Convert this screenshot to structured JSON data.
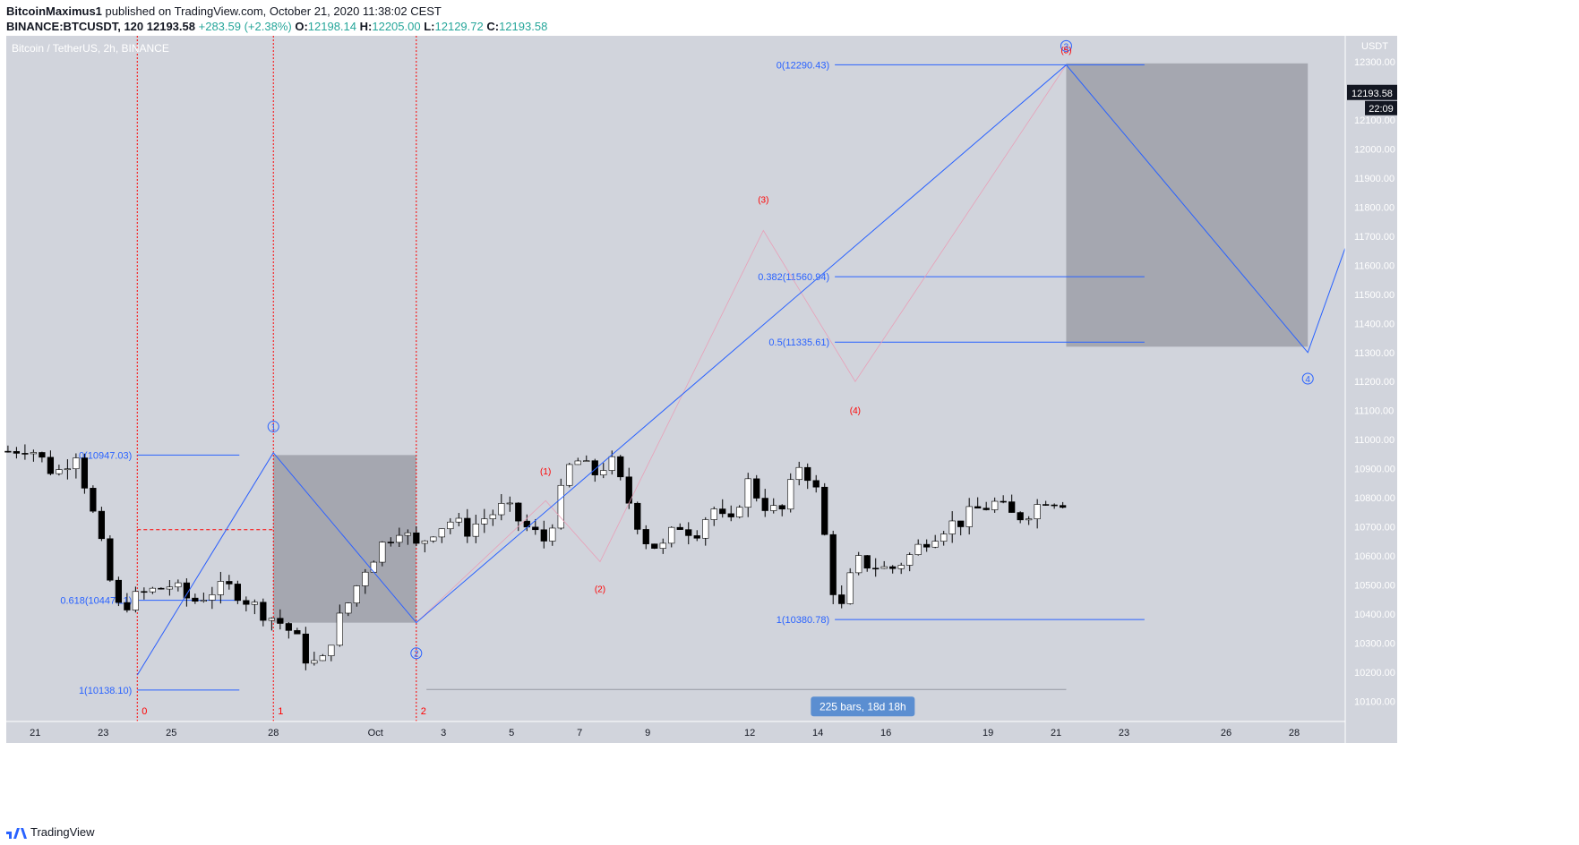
{
  "header": {
    "author": "BitcoinMaximus1",
    "published": "published on TradingView.com, October 21, 2020 11:38:02 CEST",
    "symbol": "BINANCE:BTCUSDT, 120",
    "last": "12193.58",
    "change": "+283.59 (+2.38%)",
    "open_label": "O:",
    "open": "12198.14",
    "high_label": "H:",
    "high": "12205.00",
    "low_label": "L:",
    "low": "12129.72",
    "close_label": "C:",
    "close": "12193.58"
  },
  "footer": {
    "brand": "TradingView"
  },
  "colors": {
    "panel": "#d1d4dc",
    "up": "#ffffff",
    "down": "#000000",
    "wave": "#2962ff",
    "fib": "#2962ff",
    "red": "#ff0000",
    "box": "#9598a1",
    "label_bg": "#5b8ed1",
    "price_tag": "#131722"
  },
  "chart_data": {
    "type": "candlestick",
    "title": "Bitcoin / TetherUS, 2h, BINANCE",
    "currency": "USDT",
    "ylim": [
      10030,
      12390
    ],
    "y_ticks": [
      10100,
      10200,
      10300,
      10400,
      10500,
      10600,
      10700,
      10800,
      10900,
      11000,
      11100,
      11200,
      11300,
      11400,
      11500,
      11600,
      11700,
      11800,
      11900,
      12000,
      12100,
      12200,
      12300
    ],
    "x_ticks": [
      "21",
      "23",
      "25",
      "28",
      "Oct",
      "3",
      "5",
      "7",
      "9",
      "12",
      "14",
      "16",
      "19",
      "21",
      "23",
      "26",
      "28"
    ],
    "x_tick_days": [
      21,
      23,
      25,
      28,
      31,
      33,
      35,
      37,
      39,
      42,
      44,
      46,
      49,
      51,
      53,
      56,
      58
    ],
    "x_range_days": [
      20.15,
      59.5
    ],
    "current_price": "12193.58",
    "countdown": "22:09",
    "price_path": [
      [
        20.2,
        10960
      ],
      [
        20.8,
        10980
      ],
      [
        21.6,
        10880
      ],
      [
        22.2,
        10960
      ],
      [
        22.8,
        10700
      ],
      [
        23.4,
        10420
      ],
      [
        24.2,
        10470
      ],
      [
        25.0,
        10500
      ],
      [
        25.6,
        10440
      ],
      [
        26.2,
        10480
      ],
      [
        26.8,
        10490
      ],
      [
        27.4,
        10430
      ],
      [
        28.2,
        10370
      ],
      [
        28.6,
        10330
      ],
      [
        29.0,
        10240
      ],
      [
        29.4,
        10220
      ],
      [
        29.8,
        10350
      ],
      [
        30.3,
        10460
      ],
      [
        30.7,
        10560
      ],
      [
        31.2,
        10640
      ],
      [
        31.7,
        10700
      ],
      [
        32.2,
        10630
      ],
      [
        32.7,
        10690
      ],
      [
        33.2,
        10720
      ],
      [
        33.7,
        10690
      ],
      [
        34.2,
        10730
      ],
      [
        34.8,
        10770
      ],
      [
        35.4,
        10700
      ],
      [
        36.0,
        10650
      ],
      [
        36.8,
        10940
      ],
      [
        37.4,
        10880
      ],
      [
        37.9,
        10930
      ],
      [
        38.4,
        10800
      ],
      [
        38.9,
        10660
      ],
      [
        39.4,
        10620
      ],
      [
        39.9,
        10710
      ],
      [
        40.4,
        10680
      ],
      [
        40.9,
        10770
      ],
      [
        41.4,
        10690
      ],
      [
        41.9,
        10860
      ],
      [
        42.4,
        10780
      ],
      [
        42.9,
        10740
      ],
      [
        43.5,
        10930
      ],
      [
        44.0,
        10810
      ],
      [
        44.6,
        10380
      ],
      [
        45.1,
        10580
      ],
      [
        45.6,
        10570
      ],
      [
        46.1,
        10550
      ],
      [
        46.7,
        10600
      ],
      [
        47.2,
        10660
      ],
      [
        47.7,
        10700
      ],
      [
        48.2,
        10720
      ],
      [
        48.7,
        10760
      ],
      [
        49.2,
        10780
      ],
      [
        49.8,
        10730
      ],
      [
        50.3,
        10760
      ],
      [
        50.7,
        10800
      ],
      [
        51.2,
        10790
      ],
      [
        51.7,
        10780
      ],
      [
        52.2,
        10720
      ],
      [
        52.7,
        10680
      ],
      [
        53.2,
        10560
      ],
      [
        53.7,
        10600
      ],
      [
        54.2,
        10630
      ],
      [
        54.7,
        10680
      ],
      [
        55.2,
        10670
      ],
      [
        55.7,
        10560
      ],
      [
        56.2,
        10640
      ],
      [
        56.7,
        10900
      ],
      [
        57.2,
        10920
      ],
      [
        57.7,
        10880
      ],
      [
        58.2,
        11000
      ],
      [
        58.7,
        11050
      ],
      [
        59.2,
        11100
      ],
      [
        59.7,
        11200
      ],
      [
        60.2,
        11380
      ],
      [
        60.7,
        11360
      ],
      [
        61.3,
        11320
      ],
      [
        61.8,
        11360
      ],
      [
        62.4,
        11380
      ],
      [
        63.0,
        11300
      ],
      [
        63.5,
        11350
      ],
      [
        64.0,
        11380
      ],
      [
        64.6,
        11350
      ],
      [
        65.1,
        11400
      ],
      [
        65.6,
        11320
      ],
      [
        66.1,
        11550
      ],
      [
        66.6,
        11650
      ],
      [
        67.1,
        11470
      ],
      [
        67.6,
        11480
      ],
      [
        68.1,
        11420
      ],
      [
        68.6,
        11400
      ],
      [
        69.1,
        11350
      ],
      [
        69.6,
        11380
      ],
      [
        70.1,
        11460
      ],
      [
        70.7,
        11340
      ],
      [
        71.2,
        11380
      ],
      [
        71.7,
        11310
      ],
      [
        72.2,
        11400
      ],
      [
        72.7,
        11480
      ],
      [
        73.2,
        11300
      ],
      [
        73.8,
        11270
      ],
      [
        74.3,
        11320
      ],
      [
        74.8,
        11300
      ],
      [
        75.3,
        11330
      ],
      [
        75.8,
        11350
      ],
      [
        76.3,
        11380
      ],
      [
        76.8,
        11420
      ],
      [
        77.3,
        11460
      ],
      [
        77.8,
        11500
      ],
      [
        78.3,
        11560
      ],
      [
        78.8,
        11720
      ],
      [
        79.3,
        11800
      ],
      [
        79.8,
        11760
      ],
      [
        80.3,
        11840
      ],
      [
        80.8,
        11960
      ],
      [
        81.3,
        12020
      ],
      [
        81.8,
        12230
      ],
      [
        82.0,
        12140
      ],
      [
        82.2,
        12193.58
      ]
    ],
    "candle_dates": [
      20.2,
      51.3
    ],
    "fib_retracements": [
      {
        "name": "wave-1 retracement",
        "date_from": 24.0,
        "date_to": 27.0,
        "levels": [
          {
            "label": "0(10947.03)",
            "price": 10947.03
          },
          {
            "label": "0.618(10447.11)",
            "price": 10447.11
          },
          {
            "label": "1(10138.10)",
            "price": 10138.1
          }
        ]
      },
      {
        "name": "wave-4 retracement",
        "date_from": 44.5,
        "date_to": 53.6,
        "levels": [
          {
            "label": "0(12290.43)",
            "price": 12290.43
          },
          {
            "label": "0.382(11560.94)",
            "price": 11560.94
          },
          {
            "label": "0.5(11335.61)",
            "price": 11335.61
          },
          {
            "label": "1(10380.78)",
            "price": 10380.78
          }
        ]
      }
    ],
    "boxes": [
      {
        "date_from": 28.0,
        "date_to": 32.2,
        "price_top": 10947,
        "price_bottom": 10370
      },
      {
        "date_from": 51.3,
        "date_to": 58.4,
        "price_top": 12295,
        "price_bottom": 11320
      }
    ],
    "wave_path": [
      [
        24.0,
        10190
      ],
      [
        28.0,
        10955
      ],
      [
        32.2,
        10370
      ],
      [
        51.3,
        12290
      ],
      [
        58.4,
        11300
      ],
      [
        59.5,
        11660
      ]
    ],
    "thin_path": [
      [
        24.0,
        10190
      ],
      [
        28.0,
        10955
      ],
      [
        32.2,
        10370
      ],
      [
        36.0,
        10790
      ],
      [
        37.6,
        10580
      ],
      [
        42.4,
        11720
      ],
      [
        45.1,
        11200
      ],
      [
        51.3,
        12290
      ]
    ],
    "primary_labels": [
      {
        "label": "1",
        "date": 28.0,
        "price": 11045
      },
      {
        "label": "2",
        "date": 32.2,
        "price": 10265
      },
      {
        "label": "3",
        "date": 51.3,
        "price": 12355
      },
      {
        "label": "4",
        "date": 58.4,
        "price": 11210
      }
    ],
    "sub_labels": [
      {
        "label": "(1)",
        "date": 36.0,
        "price": 10880
      },
      {
        "label": "(2)",
        "date": 37.6,
        "price": 10475
      },
      {
        "label": "(3)",
        "date": 42.4,
        "price": 11815
      },
      {
        "label": "(4)",
        "date": 45.1,
        "price": 11090
      },
      {
        "label": "(5)",
        "date": 51.3,
        "price": 12330
      }
    ],
    "vertical_markers": [
      {
        "label": "0",
        "date": 24.0
      },
      {
        "label": "1",
        "date": 28.0
      },
      {
        "label": "2",
        "date": 32.2
      }
    ],
    "dashed_level": {
      "price": 10690,
      "date_from": 24.0,
      "date_to": 28.0
    },
    "range_measure": {
      "label": "225 bars, 18d 18h",
      "date_from": 32.5,
      "date_to": 51.3,
      "price": 10140
    }
  }
}
